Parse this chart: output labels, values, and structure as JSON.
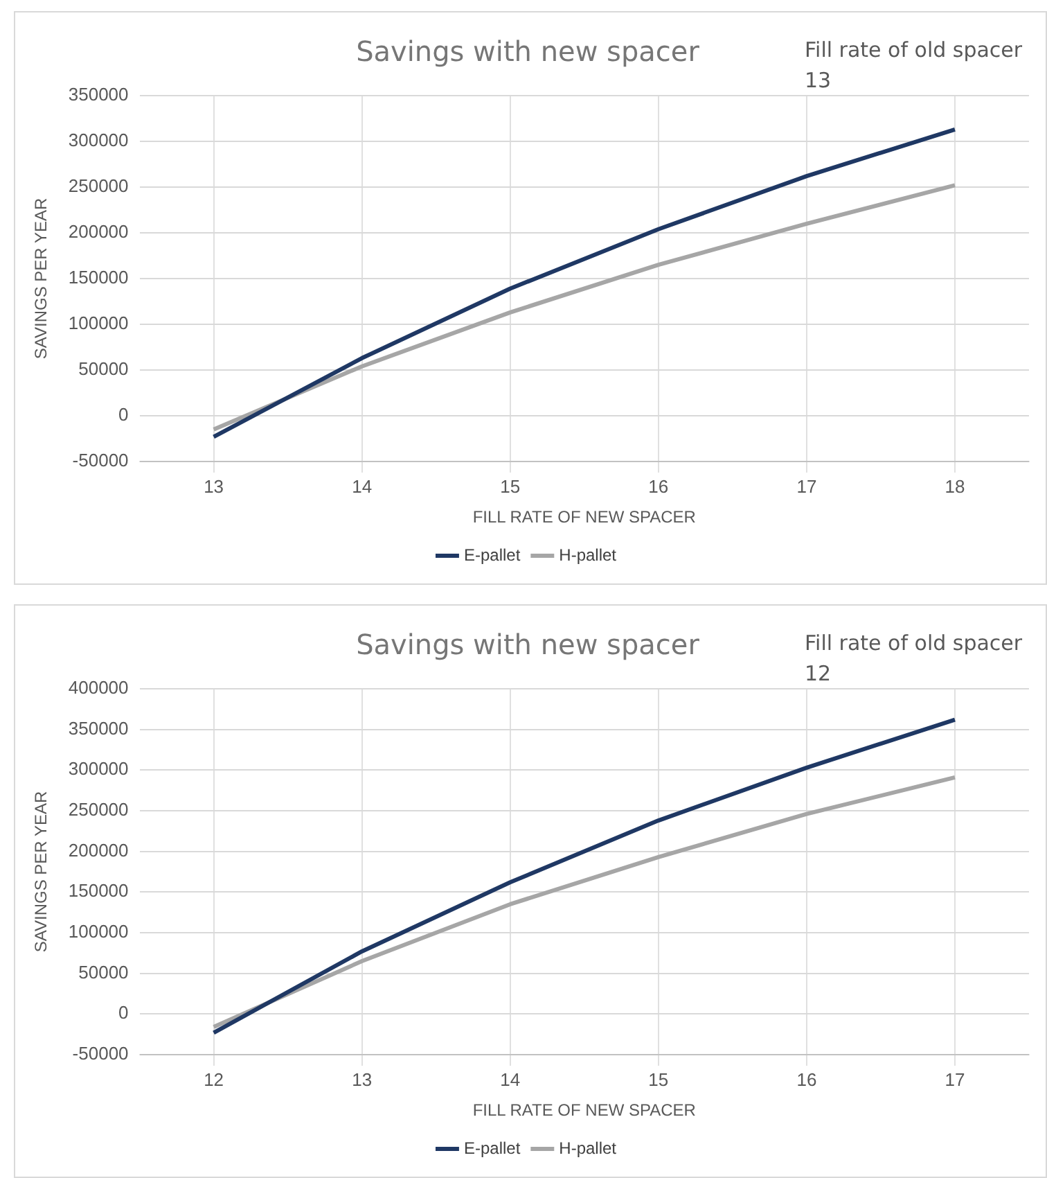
{
  "chart_data": [
    {
      "type": "line",
      "title": "Savings with new spacer",
      "annotations": [
        "Fill rate of old spacer 13"
      ],
      "xlabel": "FILL RATE OF NEW SPACER",
      "ylabel": "SAVINGS PER YEAR",
      "categories": [
        "13",
        "14",
        "15",
        "16",
        "17",
        "18"
      ],
      "series": [
        {
          "name": "E-pallet",
          "color": "#1f3864",
          "values": [
            -23000,
            63000,
            139000,
            204000,
            262000,
            313000
          ]
        },
        {
          "name": "H-pallet",
          "color": "#a6a6a6",
          "values": [
            -15000,
            54000,
            113000,
            165000,
            210000,
            252000
          ]
        }
      ],
      "ylim": [
        -50000,
        350000
      ],
      "yticks": [
        -50000,
        0,
        50000,
        100000,
        150000,
        200000,
        250000,
        300000,
        350000
      ],
      "grid": true,
      "legend": "bottom",
      "marker": "none",
      "line_style": "solid"
    },
    {
      "type": "line",
      "title": "Savings with new spacer",
      "annotations": [
        "Fill rate of old spacer 12"
      ],
      "xlabel": "FILL RATE OF NEW SPACER",
      "ylabel": "SAVINGS PER YEAR",
      "categories": [
        "12",
        "13",
        "14",
        "15",
        "16",
        "17"
      ],
      "series": [
        {
          "name": "E-pallet",
          "color": "#1f3864",
          "values": [
            -23000,
            77000,
            162000,
            238000,
            303000,
            362000
          ]
        },
        {
          "name": "H-pallet",
          "color": "#a6a6a6",
          "values": [
            -16000,
            65000,
            135000,
            193000,
            246000,
            291000
          ]
        }
      ],
      "ylim": [
        -50000,
        400000
      ],
      "yticks": [
        -50000,
        0,
        50000,
        100000,
        150000,
        200000,
        250000,
        300000,
        350000,
        400000
      ],
      "grid": true,
      "legend": "bottom",
      "marker": "none",
      "line_style": "solid"
    }
  ]
}
